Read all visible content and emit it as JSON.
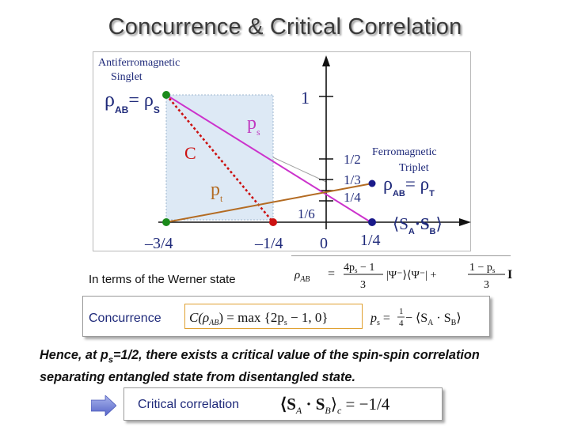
{
  "slide": {
    "title": "Concurrence & Critical Correlation"
  },
  "diagram": {
    "region_label": "Antiferromagnetic Singlet",
    "region_label_line1": "Antiferromagnetic",
    "region_label_line2": "Singlet",
    "rho_singlet": {
      "rho": "ρ",
      "sub_ab": "AB",
      "eq": "= ρ",
      "sub_s": "S"
    },
    "ferro_label_line1": "Ferromagnetic",
    "ferro_label_line2": "Triplet",
    "rho_triplet": {
      "rho": "ρ",
      "sub_ab": "AB",
      "eq": "= ρ",
      "sub_t": "T"
    },
    "y_ticks": [
      "1",
      "1/2",
      "1/3",
      "1/4",
      "1/6"
    ],
    "x_ticks": [
      "–3/4",
      "–1/4",
      "0",
      "1/4"
    ],
    "x_axis_label": "⟨S",
    "x_axis_sub_a": "A",
    "x_axis_dot": "·S",
    "x_axis_sub_b": "B",
    "x_axis_close": "⟩",
    "line_labels": {
      "ps": "p",
      "ps_sub": "s",
      "C": "C",
      "pt": "p",
      "pt_sub": "t"
    },
    "colors": {
      "magenta_line": "#cc33cc",
      "red_dotted_line": "#cc1111",
      "brown_line": "#b36b22",
      "green_dot": "#1b8a1b",
      "red_dot": "#cc1111",
      "navy_dot": "#1a1a8a",
      "shaded_region": "#dde9f5"
    }
  },
  "werner": {
    "label": "In terms of the Werner state",
    "formula": {
      "lhs": "ρ",
      "lhs_sub": "AB",
      "eq": "=",
      "frac1_num": "4p",
      "frac1_num_sub": "s",
      "frac1_num_rest": " − 1",
      "frac1_den": "3",
      "proj": "|Ψ⁻⟩⟨Ψ⁻| +",
      "frac2_num": "1 − p",
      "frac2_num_sub": "s",
      "frac2_den": "3",
      "identity": "I"
    }
  },
  "concurrence": {
    "label": "Concurrence",
    "formula_c": "C(ρ",
    "formula_c_sub": "AB",
    "formula_c_rest": ") = max {2p",
    "formula_c_sub2": "s",
    "formula_c_rest2": " − 1,  0}",
    "formula_ps": "p",
    "formula_ps_sub": "s",
    "formula_ps_eq": " = ",
    "formula_ps_frac_num": "1",
    "formula_ps_frac_den": "4",
    "formula_ps_rest": " − ⟨S",
    "formula_ps_sub_a": "A",
    "formula_ps_dot": " · S",
    "formula_ps_sub_b": "B",
    "formula_ps_close": "⟩"
  },
  "conclusion": {
    "line1_a": "Hence, at p",
    "line1_sub": "s",
    "line1_b": "=1/2, there exists a critical value of the spin-spin correlation",
    "line2": " separating entangled state from disentangled state."
  },
  "critical": {
    "label": "Critical correlation",
    "formula_open": "⟨S",
    "formula_sub_a": "A",
    "formula_dot": " · S",
    "formula_sub_b": "B",
    "formula_close": "⟩",
    "formula_sub_c": "c",
    "formula_rest": " = −1/4"
  }
}
